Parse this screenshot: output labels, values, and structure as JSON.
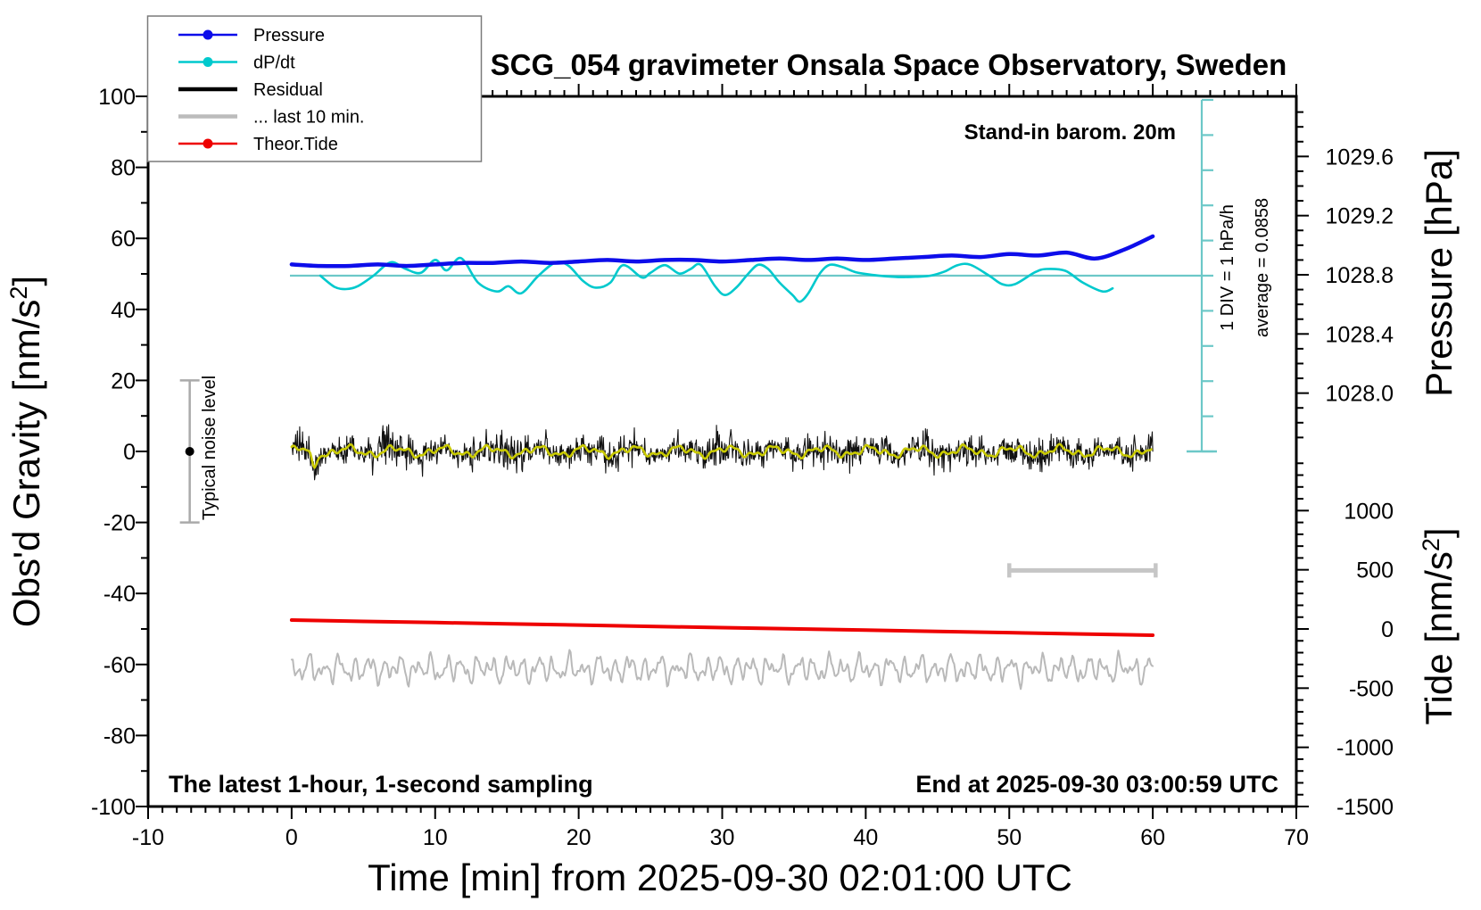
{
  "title": "SCG_054 gravimeter Onsala Space Observatory, Sweden",
  "annotations": {
    "barom_note": "Stand-in barom. 20m",
    "div_note": "1 DIV = 1 hPa/h",
    "average_note": "average = 0.0858",
    "noise_label": "Typical noise level",
    "sampling_note": "The latest 1-hour, 1-second sampling",
    "end_note": "End at 2025-09-30 03:00:59 UTC"
  },
  "legend": {
    "items": [
      {
        "label": "Pressure",
        "color": "#0d0dea",
        "width": 2.4,
        "dot": true
      },
      {
        "label": "dP/dt",
        "color": "#00c9cd",
        "width": 2.4,
        "dot": true
      },
      {
        "label": "Residual",
        "color": "#000000",
        "width": 4.5,
        "dot": false
      },
      {
        "label": "... last 10 min.",
        "color": "#bcbcbc",
        "width": 4.5,
        "dot": false
      },
      {
        "label": "Theor.Tide",
        "color": "#ee0000",
        "width": 2.4,
        "dot": true
      }
    ]
  },
  "axes": {
    "x": {
      "title": "Time [min] from 2025-09-30 02:01:00 UTC",
      "min": -10,
      "max": 70,
      "major": 10,
      "minor": 1,
      "major_labels": [
        -10,
        0,
        10,
        20,
        30,
        40,
        50,
        60,
        70
      ]
    },
    "gravity": {
      "title_pre": "Obs'd Gravity [nm/s",
      "title_sup": "2",
      "title_post": "]",
      "min": -100,
      "max": 100,
      "major": 20,
      "minor": 10,
      "major_labels": [
        100,
        80,
        60,
        40,
        20,
        0,
        -20,
        -40,
        -60,
        -80,
        -100
      ]
    },
    "pressure": {
      "title": "Pressure [hPa]",
      "major_labels": [
        1029.6,
        1029.2,
        1028.8,
        1028.4,
        1028.0
      ],
      "minor_step": 0.1,
      "minor_from": 1027.7,
      "minor_to": 1029.9
    },
    "tide": {
      "title_pre": "Tide [nm/s",
      "title_sup": "2",
      "title_post": "]",
      "major_labels": [
        1000,
        500,
        0,
        -500,
        -1000,
        -1500
      ],
      "minor_step": 100,
      "minor_from": -1400,
      "minor_to": 1400
    },
    "dpdt": {
      "div_px_note": "1 DIV = 1 hPa/h",
      "divs_above_zero": 5,
      "divs_below_zero": 5
    }
  },
  "chart_data": {
    "type": "line",
    "title": "SCG_054 gravimeter Onsala Space Observatory, Sweden",
    "xlabel": "Time [min] from 2025-09-30 02:01:00 UTC",
    "x_range": [
      -10,
      70
    ],
    "gravity_range": [
      -100,
      100
    ],
    "pressure_range_hPa": [
      1027.6,
      1030.0
    ],
    "tide_range_nms2": [
      -1500,
      1500
    ],
    "grid": false,
    "legend_position": "top-left",
    "series": [
      {
        "name": "Pressure",
        "unit": "hPa",
        "axis": "pressure",
        "x_start": 0,
        "x_step": 2,
        "values": [
          1028.87,
          1028.86,
          1028.86,
          1028.87,
          1028.86,
          1028.87,
          1028.88,
          1028.88,
          1028.89,
          1028.88,
          1028.89,
          1028.9,
          1028.89,
          1028.9,
          1028.9,
          1028.89,
          1028.9,
          1028.91,
          1028.9,
          1028.91,
          1028.9,
          1028.91,
          1028.92,
          1028.93,
          1028.92,
          1028.94,
          1028.93,
          1028.95,
          1028.91,
          1028.97,
          1029.06
        ]
      },
      {
        "name": "dP/dt",
        "unit": "hPa/h",
        "axis": "dpdt",
        "points": [
          [
            2,
            0
          ],
          [
            3,
            -0.32
          ],
          [
            3.8,
            -0.38
          ],
          [
            4.6,
            -0.3
          ],
          [
            5.7,
            0
          ],
          [
            6.9,
            0.38
          ],
          [
            7.9,
            0.2
          ],
          [
            9,
            0.08
          ],
          [
            10,
            0.45
          ],
          [
            10.8,
            0.15
          ],
          [
            11.8,
            0.5
          ],
          [
            13,
            -0.2
          ],
          [
            14.3,
            -0.45
          ],
          [
            15.1,
            -0.3
          ],
          [
            16,
            -0.5
          ],
          [
            17.2,
            0
          ],
          [
            18.4,
            0.38
          ],
          [
            19.3,
            0.28
          ],
          [
            20.3,
            -0.15
          ],
          [
            21.2,
            -0.34
          ],
          [
            22.2,
            -0.2
          ],
          [
            23.1,
            0.3
          ],
          [
            24.4,
            -0.05
          ],
          [
            25,
            0.08
          ],
          [
            26,
            0.3
          ],
          [
            27,
            0.06
          ],
          [
            27.8,
            0.19
          ],
          [
            28.5,
            0.31
          ],
          [
            29.5,
            -0.3
          ],
          [
            30.2,
            -0.55
          ],
          [
            31,
            -0.33
          ],
          [
            31.8,
            0.05
          ],
          [
            32.5,
            0.31
          ],
          [
            33.2,
            0.19
          ],
          [
            34,
            -0.2
          ],
          [
            34.9,
            -0.55
          ],
          [
            35.4,
            -0.74
          ],
          [
            36,
            -0.5
          ],
          [
            36.8,
            0.06
          ],
          [
            37.5,
            0.31
          ],
          [
            38.4,
            0.24
          ],
          [
            39.3,
            0.1
          ],
          [
            40.5,
            0.02
          ],
          [
            41.5,
            -0.02
          ],
          [
            42.5,
            -0.04
          ],
          [
            43.5,
            -0.03
          ],
          [
            44.5,
            0
          ],
          [
            45.5,
            0.12
          ],
          [
            46.4,
            0.3
          ],
          [
            47.3,
            0.31
          ],
          [
            48.6,
            0
          ],
          [
            49.5,
            -0.24
          ],
          [
            50.4,
            -0.24
          ],
          [
            51.8,
            0.1
          ],
          [
            52.6,
            0.19
          ],
          [
            53.9,
            0.14
          ],
          [
            55.1,
            -0.19
          ],
          [
            56.5,
            -0.45
          ],
          [
            57.2,
            -0.36
          ]
        ],
        "average_hPa_per_h": 0.0858
      },
      {
        "name": "Theor.Tide",
        "unit": "nm/s2",
        "axis": "tide",
        "x_start": 0,
        "x_step": 5,
        "values": [
          75,
          64,
          54,
          43,
          33,
          22,
          11,
          1,
          -10,
          -20,
          -31,
          -42,
          -53
        ]
      },
      {
        "name": "Residual",
        "unit": "nm/s2",
        "axis": "gravity",
        "procedural": true,
        "x_range": [
          0,
          60
        ],
        "center": 0,
        "typical_amplitude": 6.5
      },
      {
        "name": "Residual smoothed",
        "unit": "nm/s2",
        "axis": "gravity",
        "procedural": true,
        "x_range": [
          0,
          60
        ],
        "center": 0,
        "typical_amplitude": 1.6,
        "start_dip": -5
      },
      {
        "name": "... last 10 min.",
        "unit": "nm/s2 (offset display)",
        "axis": "gravity",
        "procedural": true,
        "x_range": [
          0,
          60
        ],
        "center": -61.3,
        "typical_amplitude": 5
      }
    ],
    "markers": {
      "noise_bar": {
        "x_min": -7.1,
        "gravity_from": -20,
        "gravity_to": 20,
        "dot_at": 0
      },
      "ten_min_scalebar": {
        "x_from": 50,
        "x_to": 60.2,
        "gravity": -33.5
      }
    }
  },
  "colors": {
    "pressure": "#0d0dea",
    "dpdt": "#00c9cd",
    "dpdt_axis": "#6cc8c8",
    "residual": "#111111",
    "residual_smooth": "#c9ca00",
    "last10": "#b9b9b9",
    "tide": "#ee0000",
    "scalebar": "#c6c6c6",
    "noise_bar": "#aaaaaa",
    "frame": "#000000"
  }
}
